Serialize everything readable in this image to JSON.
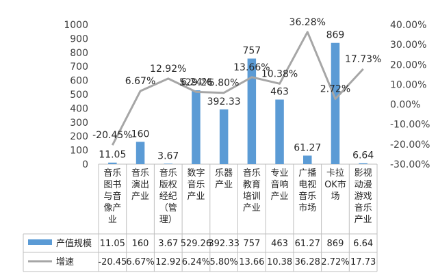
{
  "chart_data": {
    "type": "bar",
    "categories": [
      "音乐图书与音像产业",
      "音乐演出产业",
      "音乐版权经纪（管理）",
      "数字音乐产业",
      "乐器产业",
      "音乐教育培训产业",
      "专业音响产业",
      "广播电视音乐市场",
      "卡拉OK市场",
      "影视动漫游戏音乐产业"
    ],
    "category_lines": [
      [
        "音乐",
        "图书",
        "与音",
        "像产",
        "业"
      ],
      [
        "音乐",
        "演出",
        "产业"
      ],
      [
        "音乐",
        "版权",
        "经纪",
        "（管",
        "理）"
      ],
      [
        "数字",
        "音乐",
        "产业"
      ],
      [
        "乐器",
        "产业"
      ],
      [
        "音乐",
        "教育",
        "培训",
        "产业"
      ],
      [
        "专业",
        "音响",
        "产业"
      ],
      [
        "广播",
        "电视",
        "音乐",
        "市场"
      ],
      [
        "卡拉",
        "OK市",
        "场"
      ],
      [
        "影视",
        "动漫",
        "游戏",
        "音乐",
        "产业"
      ]
    ],
    "series": [
      {
        "name": "产值规模",
        "type": "bar",
        "axis": "left",
        "color": "#5b9bd5",
        "values": [
          11.05,
          160,
          3.67,
          529.26,
          392.33,
          757,
          463,
          61.27,
          869,
          6.64
        ],
        "labels": [
          "11.05",
          "160",
          "3.67",
          "529.26",
          "392.33",
          "757",
          "463",
          "61.27",
          "869",
          "6.64"
        ],
        "table_labels": [
          "11.05",
          "160",
          "3.67",
          "529.26",
          "392.33",
          "757",
          "463",
          "61.27",
          "869",
          "6.64"
        ]
      },
      {
        "name": "增速",
        "type": "line",
        "axis": "right",
        "color": "#a6a6a6",
        "values": [
          -20.45,
          6.67,
          12.92,
          6.24,
          5.8,
          13.66,
          10.38,
          36.28,
          2.72,
          17.73
        ],
        "labels": [
          "-20.45%",
          "6.67%",
          "12.92%",
          "6.24%",
          "5.80%",
          "13.66%",
          "10.38%",
          "36.28%",
          "2.72%",
          "17.73%"
        ],
        "table_labels": [
          "-20.45",
          "6.67%",
          "12.92",
          "6.24%",
          "5.80%",
          "13.66",
          "10.38",
          "36.28",
          "2.72%",
          "17.73"
        ]
      }
    ],
    "y_left": {
      "range": [
        0,
        1000
      ],
      "ticks": [
        "0",
        "100",
        "200",
        "300",
        "400",
        "500",
        "600",
        "700",
        "800",
        "900",
        "1000"
      ]
    },
    "y_right": {
      "range": [
        -30,
        40
      ],
      "ticks": [
        "-30.00%",
        "-20.00%",
        "-10.00%",
        "0.00%",
        "10.00%",
        "20.00%",
        "30.00%",
        "40.00%"
      ]
    },
    "grid": false,
    "legend": "data-table"
  }
}
